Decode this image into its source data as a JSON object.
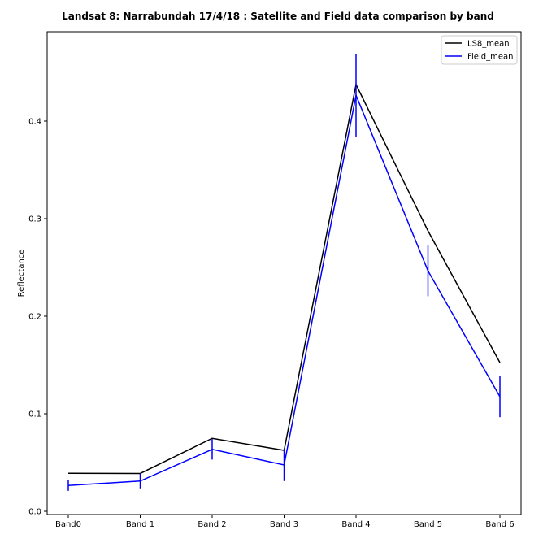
{
  "chart_data": {
    "type": "line",
    "title": "Landsat 8: Narrabundah 17/4/18 : Satellite and Field data comparison by band",
    "xlabel": "",
    "ylabel": "Reflectance",
    "categories": [
      "Band0",
      "Band 1",
      "Band 2",
      "Band 3",
      "Band 4",
      "Band 5",
      "Band 6"
    ],
    "ylim": [
      -0.002,
      0.492
    ],
    "yticks": [
      0.0,
      0.1,
      0.2,
      0.3,
      0.4
    ],
    "ytick_labels": [
      "0.0",
      "0.1",
      "0.2",
      "0.3",
      "0.4"
    ],
    "grid": false,
    "legend_position": "top-right",
    "series": [
      {
        "name": "LS8_mean",
        "color": "#000000",
        "values": [
          0.039,
          0.0388,
          0.0748,
          0.0625,
          0.4375,
          0.2875,
          0.1525
        ]
      },
      {
        "name": "Field_mean",
        "color": "#0000ff",
        "values": [
          0.0265,
          0.031,
          0.0635,
          0.0475,
          0.4265,
          0.2465,
          0.1175
        ],
        "errors": [
          0.0055,
          0.0075,
          0.0105,
          0.0165,
          0.0425,
          0.026,
          0.021
        ]
      }
    ]
  }
}
